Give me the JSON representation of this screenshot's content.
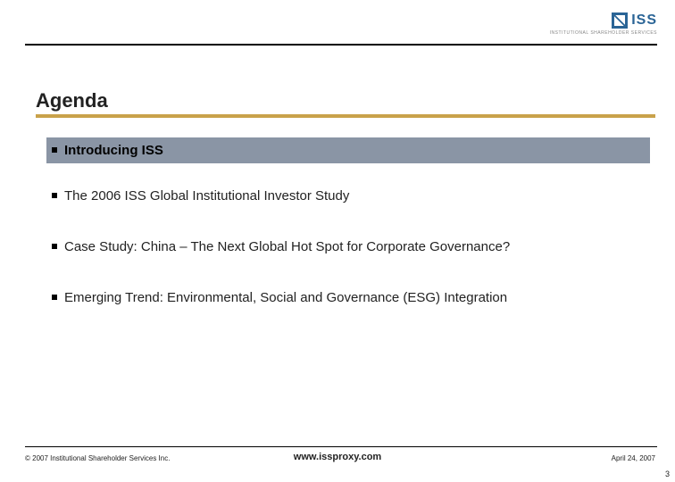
{
  "logo": {
    "text": "ISS",
    "subtext": "INSTITUTIONAL SHAREHOLDER SERVICES"
  },
  "title": "Agenda",
  "colors": {
    "accent_bar": "#c9a24a",
    "highlight_bg": "#8a95a5",
    "rule": "#000000",
    "logo_color": "#2a6496"
  },
  "items": [
    {
      "text": "Introducing ISS",
      "highlighted": true
    },
    {
      "text": "The 2006 ISS Global Institutional Investor Study",
      "highlighted": false
    },
    {
      "text": "Case Study:  China – The Next Global Hot Spot for Corporate Governance?",
      "highlighted": false
    },
    {
      "text": "Emerging Trend:  Environmental, Social and Governance (ESG) Integration",
      "highlighted": false
    }
  ],
  "footer": {
    "left": "© 2007 Institutional Shareholder Services Inc.",
    "center": "www.issproxy.com",
    "right": "April 24, 2007"
  },
  "page_number": "3"
}
